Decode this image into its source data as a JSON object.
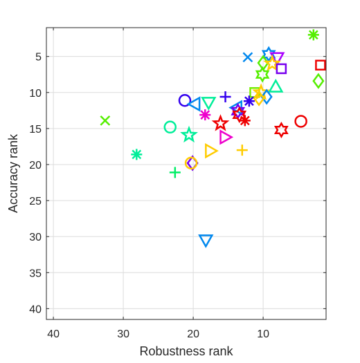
{
  "chart_data": {
    "type": "scatter",
    "title": "",
    "xlabel": "Robustness rank",
    "ylabel": "Accuracy rank",
    "xlim": [
      41,
      1
    ],
    "ylim": [
      41.5,
      1
    ],
    "x_reversed": true,
    "y_reversed": true,
    "grid": true,
    "xticks": [
      40,
      30,
      20,
      10
    ],
    "yticks": [
      5,
      10,
      15,
      20,
      25,
      30,
      35,
      40
    ],
    "points": [
      {
        "x": 2.8,
        "y": 2.0,
        "marker": "asterisk",
        "color": "#55ee00"
      },
      {
        "x": 9.2,
        "y": 4.7,
        "marker": "hexagram",
        "color": "#0088ee"
      },
      {
        "x": 12.2,
        "y": 5.1,
        "marker": "x",
        "color": "#0088ee"
      },
      {
        "x": 8.0,
        "y": 5.2,
        "marker": "triangle-down",
        "color": "#aa00ff"
      },
      {
        "x": 10.0,
        "y": 5.9,
        "marker": "diamond",
        "color": "#55ee00"
      },
      {
        "x": 8.7,
        "y": 6.0,
        "marker": "pentagram",
        "color": "#ffcc00"
      },
      {
        "x": 1.8,
        "y": 6.2,
        "marker": "square",
        "color": "#ee0000"
      },
      {
        "x": 7.4,
        "y": 6.7,
        "marker": "square",
        "color": "#7700ee"
      },
      {
        "x": 10.1,
        "y": 7.5,
        "marker": "hexagram",
        "color": "#55ee00"
      },
      {
        "x": 2.1,
        "y": 8.4,
        "marker": "diamond",
        "color": "#55ee00"
      },
      {
        "x": 8.2,
        "y": 9.2,
        "marker": "triangle-up",
        "color": "#00ee99"
      },
      {
        "x": 11.2,
        "y": 10.0,
        "marker": "square",
        "color": "#77ee00"
      },
      {
        "x": 10.3,
        "y": 10.0,
        "marker": "pentagram",
        "color": "#ffcc00"
      },
      {
        "x": 15.4,
        "y": 10.6,
        "marker": "plus",
        "color": "#3300ee"
      },
      {
        "x": 9.5,
        "y": 10.6,
        "marker": "diamond",
        "color": "#0088ee"
      },
      {
        "x": 10.6,
        "y": 10.8,
        "marker": "diamond",
        "color": "#ffcc00"
      },
      {
        "x": 21.2,
        "y": 11.1,
        "marker": "circle",
        "color": "#3300ee"
      },
      {
        "x": 12.0,
        "y": 11.2,
        "marker": "asterisk",
        "color": "#3300ee"
      },
      {
        "x": 17.8,
        "y": 11.4,
        "marker": "triangle-down",
        "color": "#00ee99"
      },
      {
        "x": 19.8,
        "y": 11.6,
        "marker": "triangle-left",
        "color": "#0088ee"
      },
      {
        "x": 13.8,
        "y": 12.1,
        "marker": "triangle-left",
        "color": "#0088ee"
      },
      {
        "x": 13.6,
        "y": 12.6,
        "marker": "hexagram",
        "color": "#7700ee"
      },
      {
        "x": 18.3,
        "y": 13.1,
        "marker": "asterisk",
        "color": "#ee00cc"
      },
      {
        "x": 13.4,
        "y": 13.1,
        "marker": "hexagram",
        "color": "#ee0000"
      },
      {
        "x": 12.6,
        "y": 13.9,
        "marker": "asterisk",
        "color": "#ee0000"
      },
      {
        "x": 32.6,
        "y": 13.9,
        "marker": "x",
        "color": "#55ee00"
      },
      {
        "x": 16.1,
        "y": 14.3,
        "marker": "pentagram",
        "color": "#ee0000"
      },
      {
        "x": 4.6,
        "y": 14.0,
        "marker": "circle",
        "color": "#ee0000"
      },
      {
        "x": 23.3,
        "y": 14.8,
        "marker": "circle",
        "color": "#00ee99"
      },
      {
        "x": 7.4,
        "y": 15.2,
        "marker": "hexagram",
        "color": "#ee0000"
      },
      {
        "x": 20.6,
        "y": 15.9,
        "marker": "pentagram",
        "color": "#00ee99"
      },
      {
        "x": 15.4,
        "y": 16.2,
        "marker": "triangle-right",
        "color": "#ee00cc"
      },
      {
        "x": 17.5,
        "y": 18.1,
        "marker": "triangle-right",
        "color": "#ffcc00"
      },
      {
        "x": 13.0,
        "y": 18.0,
        "marker": "plus",
        "color": "#ffcc00"
      },
      {
        "x": 28.1,
        "y": 18.6,
        "marker": "asterisk",
        "color": "#00ee99"
      },
      {
        "x": 20.1,
        "y": 19.8,
        "marker": "diamond",
        "color": "#7700ee"
      },
      {
        "x": 20.3,
        "y": 19.8,
        "marker": "circle",
        "color": "#ffcc00"
      },
      {
        "x": 22.6,
        "y": 21.1,
        "marker": "plus",
        "color": "#00ee66"
      },
      {
        "x": 18.2,
        "y": 30.5,
        "marker": "triangle-down",
        "color": "#0088ee"
      }
    ]
  }
}
